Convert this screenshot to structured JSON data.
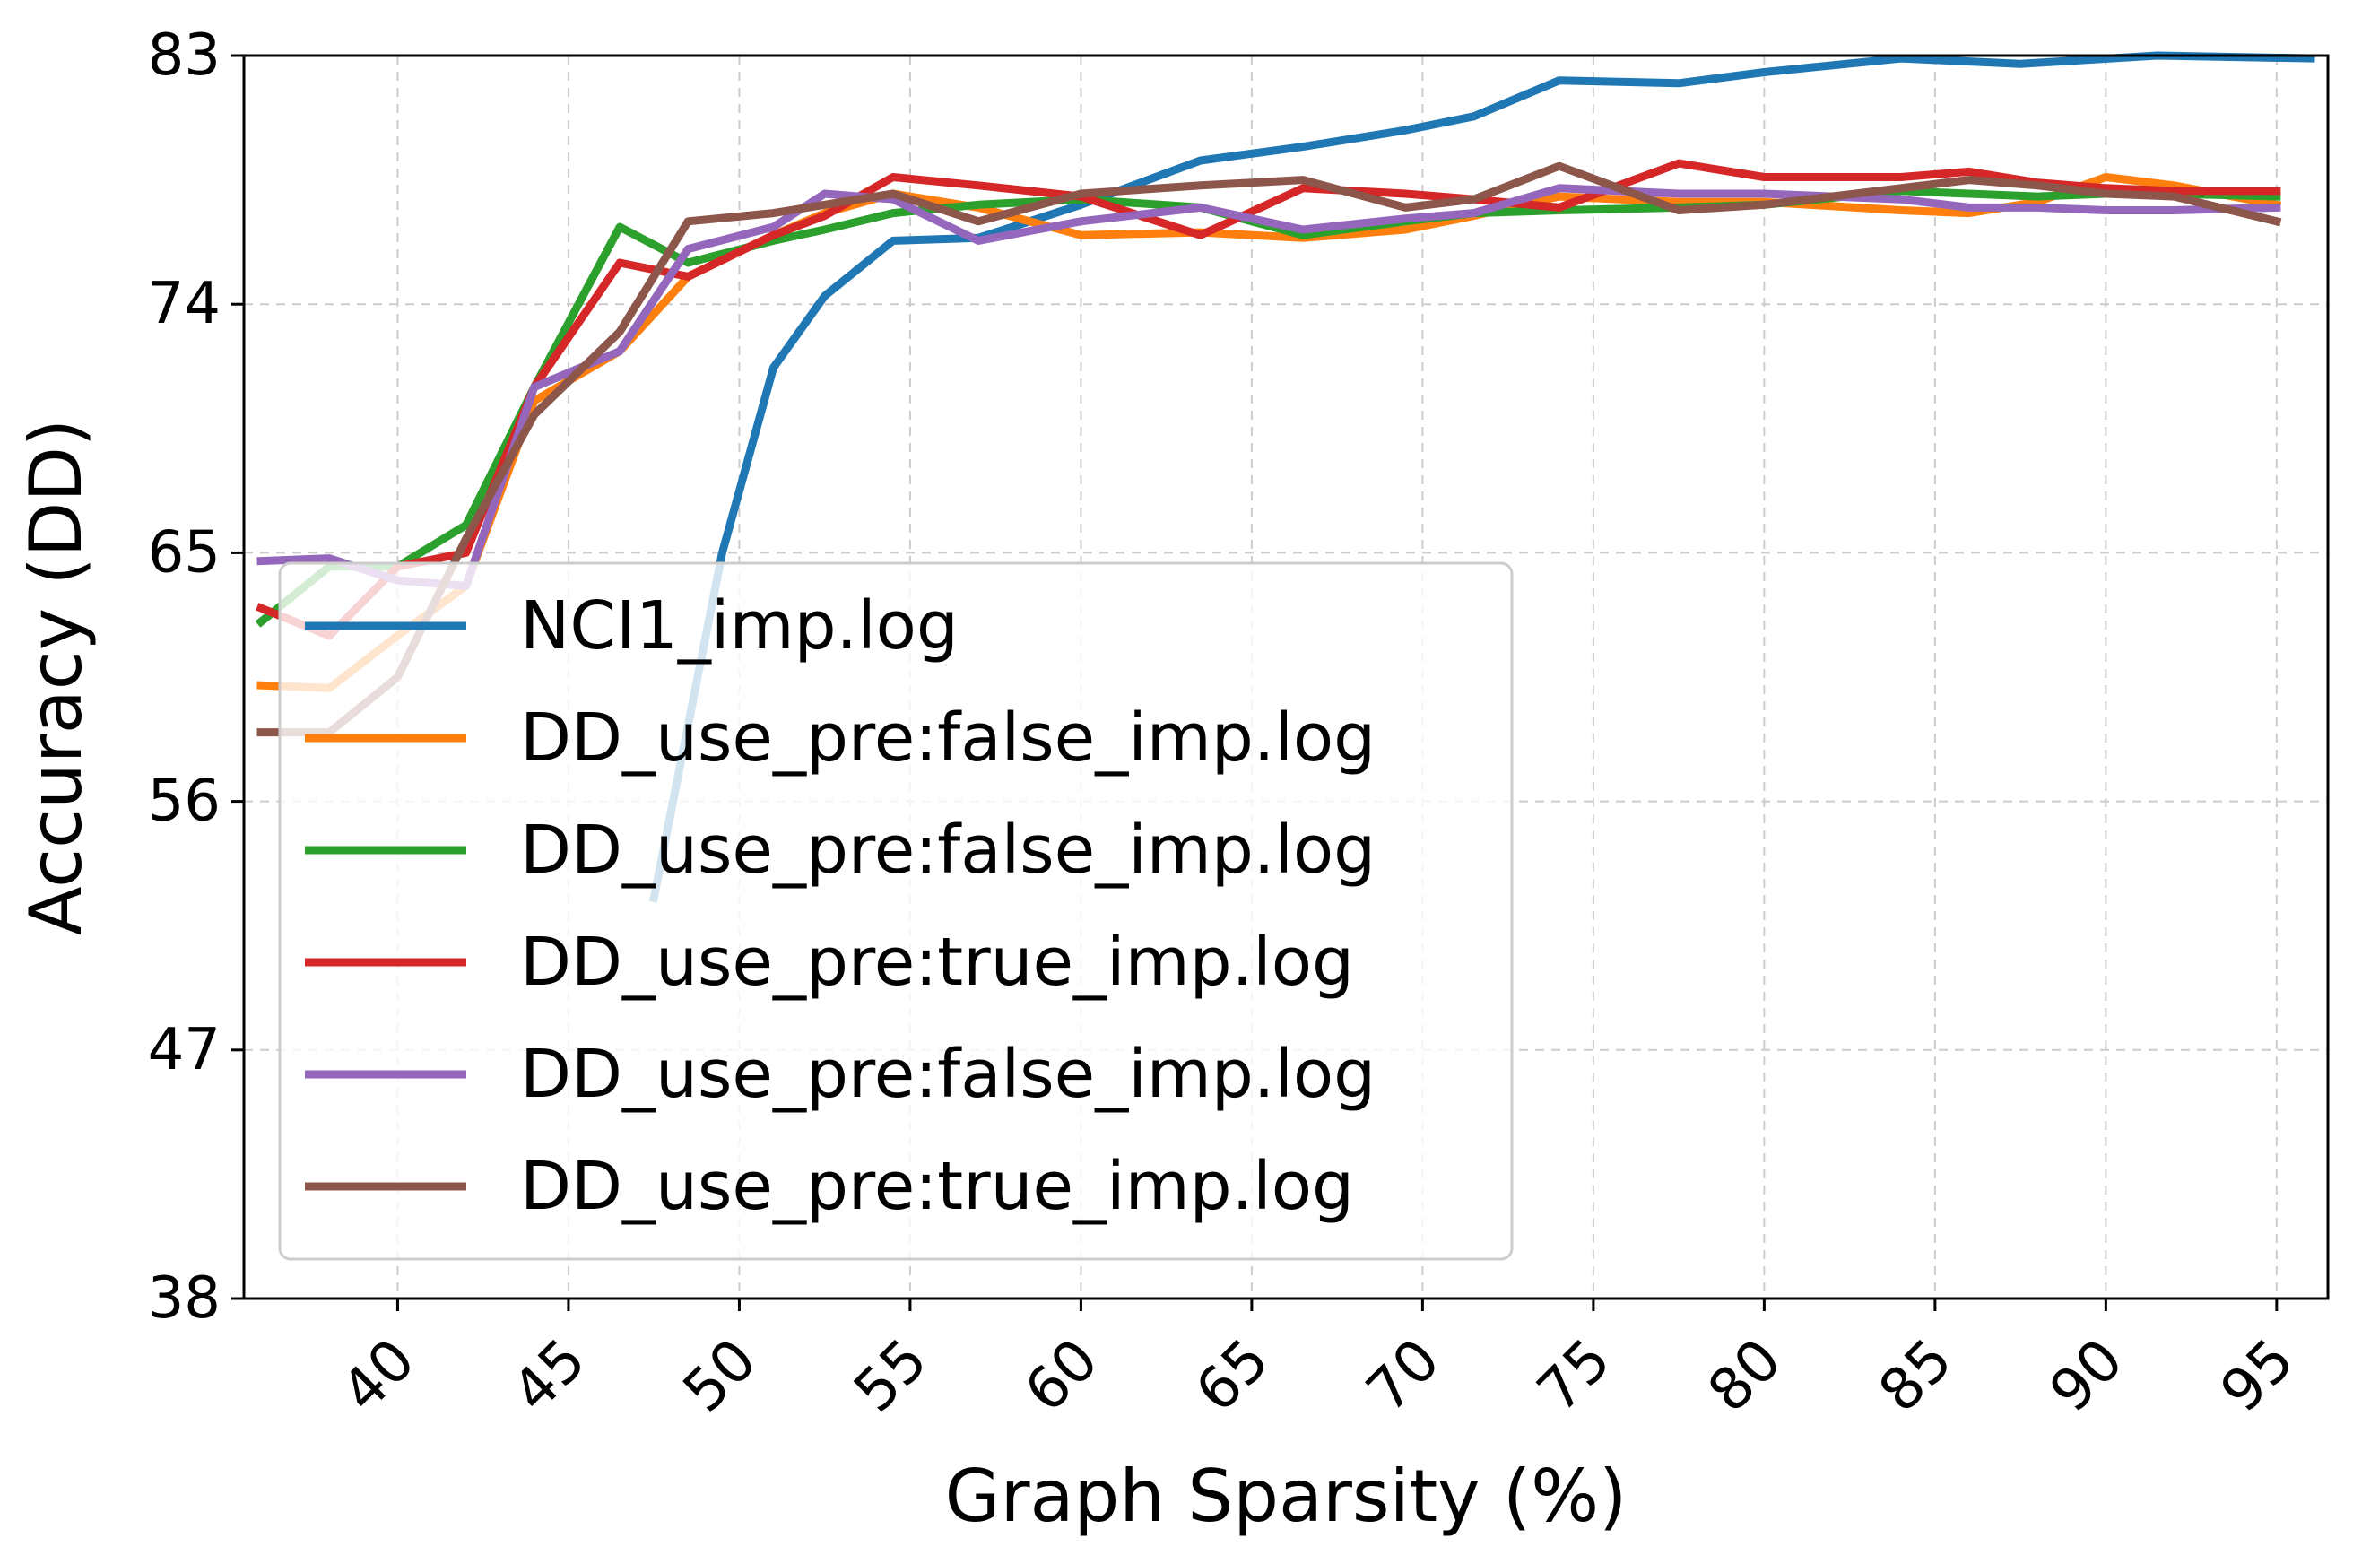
{
  "chart_data": {
    "type": "line",
    "xlabel": "Graph Sparsity (%)",
    "ylabel": "Accuracy (DD)",
    "xlim": [
      35.5,
      96.5
    ],
    "ylim": [
      38,
      83
    ],
    "xticks": [
      40,
      45,
      50,
      55,
      60,
      65,
      70,
      75,
      80,
      85,
      90,
      95
    ],
    "yticks": [
      38,
      47,
      56,
      65,
      74,
      83
    ],
    "grid": true,
    "legend_position": "lower-left",
    "x": [
      36.0,
      38.0,
      40.0,
      42.0,
      44.0,
      46.5,
      48.5,
      51.0,
      52.5,
      54.5,
      57.0,
      60.0,
      63.5,
      66.5,
      68.0,
      71.5,
      74.0,
      77.5,
      80.0,
      84.0,
      86.0,
      88.0,
      90.0,
      92.0,
      95.0,
      96.0
    ],
    "series": [
      {
        "name": "NCI1_imp.log",
        "color": "#1f77b4",
        "x": [
          47.5,
          49.5,
          51.0,
          52.5,
          54.5,
          57.0,
          60.0,
          63.5,
          66.5,
          69.5,
          71.5,
          74.0,
          77.5,
          80.0,
          84.0,
          87.5,
          91.5,
          96.0
        ],
        "values": [
          52.5,
          65.0,
          71.7,
          74.3,
          76.3,
          76.4,
          77.6,
          79.2,
          79.7,
          80.3,
          80.8,
          82.1,
          82.0,
          82.4,
          82.9,
          82.7,
          83.0,
          82.9
        ]
      },
      {
        "name": "DD_use_pre:false_imp.log",
        "color": "#ff7f0e",
        "x": [
          36.0,
          38.0,
          40.0,
          42.0,
          44.0,
          46.5,
          48.5,
          51.0,
          52.5,
          54.5,
          57.0,
          60.0,
          63.5,
          66.5,
          69.5,
          71.5,
          74.0,
          77.5,
          80.0,
          84.0,
          86.0,
          88.0,
          90.0,
          92.0,
          95.0
        ],
        "values": [
          60.2,
          60.1,
          62.0,
          63.8,
          70.5,
          72.3,
          75.0,
          76.5,
          77.3,
          78.0,
          77.5,
          76.5,
          76.6,
          76.4,
          76.7,
          77.2,
          77.9,
          77.7,
          77.7,
          77.4,
          77.3,
          77.7,
          78.6,
          78.3,
          77.6
        ]
      },
      {
        "name": "DD_use_pre:false_imp.log",
        "color": "#2ca02c",
        "x": [
          36.0,
          38.0,
          40.0,
          42.0,
          44.0,
          46.5,
          48.5,
          51.0,
          52.5,
          54.5,
          57.0,
          60.0,
          63.5,
          66.5,
          69.5,
          71.5,
          74.0,
          77.5,
          80.0,
          84.0,
          86.0,
          88.0,
          90.0,
          92.0,
          95.0
        ],
        "values": [
          62.5,
          64.5,
          64.5,
          66.0,
          71.0,
          76.8,
          75.5,
          76.3,
          76.7,
          77.3,
          77.6,
          77.8,
          77.5,
          76.5,
          77.0,
          77.3,
          77.4,
          77.5,
          77.6,
          78.1,
          78.0,
          77.9,
          78.0,
          78.0,
          77.9
        ]
      },
      {
        "name": "DD_use_pre:true_imp.log",
        "color": "#d62728",
        "x": [
          36.0,
          38.0,
          40.0,
          42.0,
          44.0,
          46.5,
          48.5,
          51.0,
          52.5,
          54.5,
          57.0,
          60.0,
          63.5,
          66.5,
          69.5,
          71.5,
          74.0,
          77.5,
          80.0,
          84.0,
          86.0,
          88.0,
          90.0,
          92.0,
          95.0
        ],
        "values": [
          63.0,
          62.0,
          64.5,
          65.0,
          71.0,
          75.5,
          75.0,
          76.5,
          77.2,
          78.6,
          78.3,
          77.9,
          76.5,
          78.2,
          78.0,
          77.8,
          77.5,
          79.1,
          78.6,
          78.6,
          78.8,
          78.4,
          78.2,
          78.1,
          78.1
        ]
      },
      {
        "name": "DD_use_pre:false_imp.log",
        "color": "#9467bd",
        "x": [
          36.0,
          38.0,
          40.0,
          42.0,
          44.0,
          46.5,
          48.5,
          51.0,
          52.5,
          54.5,
          57.0,
          60.0,
          63.5,
          66.5,
          69.5,
          71.5,
          74.0,
          77.5,
          80.0,
          84.0,
          86.0,
          88.0,
          90.0,
          92.0,
          95.0
        ],
        "values": [
          64.7,
          64.8,
          64.0,
          63.8,
          71.0,
          72.3,
          76.0,
          76.8,
          78.0,
          77.8,
          76.3,
          77.0,
          77.5,
          76.7,
          77.1,
          77.3,
          78.2,
          78.0,
          78.0,
          77.8,
          77.5,
          77.5,
          77.4,
          77.4,
          77.5
        ]
      },
      {
        "name": "DD_use_pre:true_imp.log",
        "color": "#8c564b",
        "x": [
          36.0,
          38.0,
          40.0,
          42.0,
          44.0,
          46.5,
          48.5,
          51.0,
          52.5,
          54.5,
          57.0,
          60.0,
          63.5,
          66.5,
          69.5,
          71.5,
          74.0,
          77.5,
          80.0,
          84.0,
          86.0,
          88.0,
          90.0,
          92.0,
          95.0
        ],
        "values": [
          58.5,
          58.5,
          60.5,
          65.5,
          70.0,
          73.0,
          77.0,
          77.3,
          77.6,
          78.0,
          77.0,
          78.0,
          78.3,
          78.5,
          77.5,
          77.8,
          79.0,
          77.4,
          77.6,
          78.2,
          78.5,
          78.3,
          78.0,
          77.9,
          77.0
        ]
      }
    ]
  }
}
